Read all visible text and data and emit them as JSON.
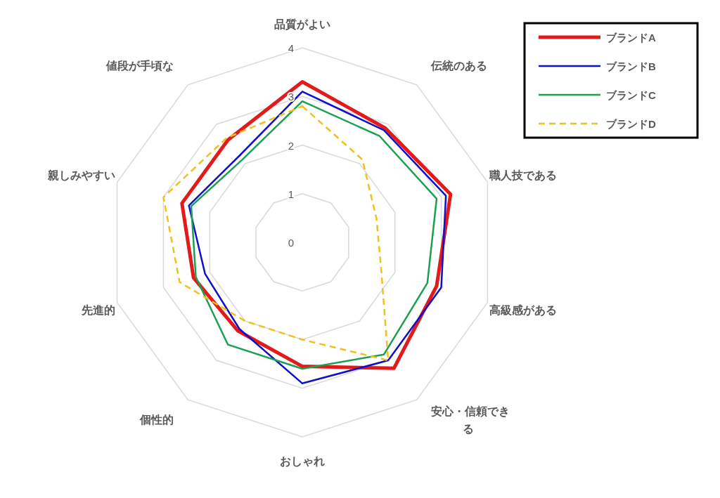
{
  "chart_data": {
    "type": "radar",
    "categories": [
      "品質がよい",
      "伝統のある",
      "職人技である",
      "高級感がある",
      "安心・信頼できる",
      "おしゃれ",
      "個性的",
      "先進的",
      "親しみやすい",
      "値段が手頃な"
    ],
    "ylim": [
      0,
      4
    ],
    "yticks": [
      0,
      1,
      2,
      3,
      4
    ],
    "grid": true,
    "legend": "top right",
    "marker": "none",
    "series": [
      {
        "name": "ブランドA",
        "color": "#e31a1c",
        "line_style": "solid",
        "values": [
          3.3,
          2.9,
          3.2,
          2.9,
          3.2,
          2.55,
          2.25,
          2.35,
          2.6,
          2.6
        ]
      },
      {
        "name": "ブランドB",
        "color": "#1010c8",
        "line_style": "solid",
        "values": [
          3.1,
          2.85,
          3.1,
          3.0,
          3.0,
          2.9,
          2.2,
          2.1,
          2.45,
          2.2
        ]
      },
      {
        "name": "ブランドC",
        "color": "#1aa050",
        "line_style": "solid",
        "values": [
          2.9,
          2.7,
          2.9,
          2.7,
          2.85,
          2.6,
          2.6,
          2.3,
          2.4,
          2.1
        ]
      },
      {
        "name": "ブランドD",
        "color": "#f0c020",
        "line_style": "dashed",
        "values": [
          2.8,
          2.1,
          1.6,
          1.7,
          3.0,
          2.0,
          2.0,
          2.65,
          3.0,
          2.65
        ]
      }
    ]
  }
}
